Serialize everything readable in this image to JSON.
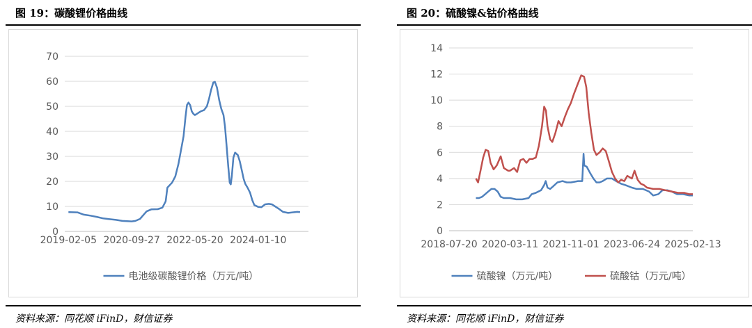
{
  "left": {
    "figure_title": "图 19：碳酸锂价格曲线",
    "source": "资料来源：同花顺 iFinD，财信证券"
  },
  "right": {
    "figure_title": "图 20：硫酸镍&钴价格曲线",
    "source": "资料来源：同花顺 iFinD，财信证券"
  },
  "colors": {
    "blue": "#4f81bd",
    "red": "#c0504d",
    "grid": "#d9d9d9"
  },
  "chart_data": [
    {
      "type": "line",
      "title": "",
      "xlabel": "",
      "ylabel": "",
      "ylim": [
        0,
        70
      ],
      "yticks": [
        0,
        10,
        20,
        30,
        40,
        50,
        60,
        70
      ],
      "xlim": [
        "2019-01-01",
        "2025-05-01"
      ],
      "xticks": [
        "2019-02-05",
        "2020-09-27",
        "2022-05-20",
        "2024-01-10"
      ],
      "grid": "horizontal",
      "legend": "bottom",
      "series": [
        {
          "name": "电池级碳酸锂价格（万元/吨）",
          "color": "#4f81bd",
          "points": [
            [
              "2019-02-05",
              7.7
            ],
            [
              "2019-05-01",
              7.6
            ],
            [
              "2019-07-01",
              6.7
            ],
            [
              "2019-09-01",
              6.3
            ],
            [
              "2019-11-01",
              5.8
            ],
            [
              "2020-01-01",
              5.2
            ],
            [
              "2020-03-01",
              4.9
            ],
            [
              "2020-05-01",
              4.6
            ],
            [
              "2020-07-01",
              4.2
            ],
            [
              "2020-09-27",
              4.0
            ],
            [
              "2020-11-01",
              4.2
            ],
            [
              "2020-12-15",
              5.0
            ],
            [
              "2021-01-15",
              6.5
            ],
            [
              "2021-02-15",
              8.0
            ],
            [
              "2021-04-01",
              8.8
            ],
            [
              "2021-06-01",
              8.9
            ],
            [
              "2021-07-15",
              9.5
            ],
            [
              "2021-08-15",
              12.0
            ],
            [
              "2021-09-01",
              17.5
            ],
            [
              "2021-10-15",
              19.5
            ],
            [
              "2021-11-15",
              22.0
            ],
            [
              "2021-12-15",
              27.0
            ],
            [
              "2022-01-10",
              33.0
            ],
            [
              "2022-02-01",
              38.0
            ],
            [
              "2022-02-20",
              46.0
            ],
            [
              "2022-03-05",
              50.5
            ],
            [
              "2022-03-20",
              51.5
            ],
            [
              "2022-04-05",
              50.5
            ],
            [
              "2022-04-20",
              48.0
            ],
            [
              "2022-05-05",
              47.0
            ],
            [
              "2022-05-20",
              46.5
            ],
            [
              "2022-06-15",
              47.2
            ],
            [
              "2022-07-15",
              48.0
            ],
            [
              "2022-08-15",
              48.5
            ],
            [
              "2022-09-10",
              50.0
            ],
            [
              "2022-10-01",
              53.0
            ],
            [
              "2022-10-20",
              56.5
            ],
            [
              "2022-11-10",
              59.5
            ],
            [
              "2022-11-25",
              59.8
            ],
            [
              "2022-12-15",
              57.5
            ],
            [
              "2023-01-05",
              52.5
            ],
            [
              "2023-01-25",
              49.0
            ],
            [
              "2023-02-15",
              46.5
            ],
            [
              "2023-03-01",
              42.0
            ],
            [
              "2023-03-15",
              35.0
            ],
            [
              "2023-04-01",
              26.0
            ],
            [
              "2023-04-15",
              19.5
            ],
            [
              "2023-04-25",
              18.8
            ],
            [
              "2023-05-05",
              22.0
            ],
            [
              "2023-05-20",
              29.5
            ],
            [
              "2023-06-05",
              31.5
            ],
            [
              "2023-07-01",
              30.5
            ],
            [
              "2023-07-20",
              28.0
            ],
            [
              "2023-08-10",
              24.0
            ],
            [
              "2023-08-25",
              21.0
            ],
            [
              "2023-09-10",
              19.0
            ],
            [
              "2023-10-01",
              17.5
            ],
            [
              "2023-10-25",
              15.5
            ],
            [
              "2023-11-15",
              12.5
            ],
            [
              "2023-12-05",
              10.5
            ],
            [
              "2024-01-10",
              9.8
            ],
            [
              "2024-02-10",
              9.7
            ],
            [
              "2024-03-15",
              10.8
            ],
            [
              "2024-04-20",
              11.0
            ],
            [
              "2024-05-20",
              10.8
            ],
            [
              "2024-06-25",
              9.8
            ],
            [
              "2024-07-25",
              9.0
            ],
            [
              "2024-09-01",
              7.8
            ],
            [
              "2024-10-20",
              7.4
            ],
            [
              "2024-12-01",
              7.6
            ],
            [
              "2025-01-15",
              7.8
            ],
            [
              "2025-02-10",
              7.7
            ]
          ]
        }
      ]
    },
    {
      "type": "line",
      "title": "",
      "xlabel": "",
      "ylabel": "",
      "ylim": [
        0,
        14
      ],
      "yticks": [
        0,
        2,
        4,
        6,
        8,
        10,
        12,
        14
      ],
      "xlim": [
        "2018-07-20",
        "2025-02-13"
      ],
      "xticks": [
        "2018-07-20",
        "2020-03-11",
        "2021-11-01",
        "2023-06-24",
        "2025-02-13"
      ],
      "grid": "horizontal",
      "legend": "bottom",
      "series": [
        {
          "name": "硫酸镍（万元/吨）",
          "color": "#4f81bd",
          "points": [
            [
              "2019-04-10",
              2.5
            ],
            [
              "2019-05-10",
              2.5
            ],
            [
              "2019-06-10",
              2.6
            ],
            [
              "2019-07-10",
              2.8
            ],
            [
              "2019-08-10",
              3.0
            ],
            [
              "2019-09-10",
              3.2
            ],
            [
              "2019-10-10",
              3.2
            ],
            [
              "2019-11-10",
              3.0
            ],
            [
              "2019-12-10",
              2.6
            ],
            [
              "2020-01-10",
              2.5
            ],
            [
              "2020-03-11",
              2.5
            ],
            [
              "2020-05-10",
              2.4
            ],
            [
              "2020-07-10",
              2.4
            ],
            [
              "2020-09-10",
              2.5
            ],
            [
              "2020-10-10",
              2.8
            ],
            [
              "2020-11-20",
              2.9
            ],
            [
              "2021-01-10",
              3.1
            ],
            [
              "2021-02-10",
              3.5
            ],
            [
              "2021-02-25",
              3.8
            ],
            [
              "2021-03-15",
              3.3
            ],
            [
              "2021-04-10",
              3.2
            ],
            [
              "2021-05-10",
              3.4
            ],
            [
              "2021-06-20",
              3.7
            ],
            [
              "2021-08-10",
              3.8
            ],
            [
              "2021-09-20",
              3.7
            ],
            [
              "2021-11-01",
              3.7
            ],
            [
              "2022-01-10",
              3.8
            ],
            [
              "2022-02-20",
              3.8
            ],
            [
              "2022-03-05",
              5.9
            ],
            [
              "2022-03-12",
              5.0
            ],
            [
              "2022-04-05",
              4.9
            ],
            [
              "2022-05-10",
              4.4
            ],
            [
              "2022-06-10",
              4.0
            ],
            [
              "2022-07-10",
              3.7
            ],
            [
              "2022-08-10",
              3.7
            ],
            [
              "2022-09-10",
              3.8
            ],
            [
              "2022-10-20",
              4.0
            ],
            [
              "2022-12-10",
              4.0
            ],
            [
              "2023-01-20",
              3.8
            ],
            [
              "2023-03-10",
              3.6
            ],
            [
              "2023-04-20",
              3.5
            ],
            [
              "2023-06-24",
              3.3
            ],
            [
              "2023-08-10",
              3.2
            ],
            [
              "2023-10-10",
              3.2
            ],
            [
              "2023-12-10",
              3.0
            ],
            [
              "2024-01-20",
              2.7
            ],
            [
              "2024-03-10",
              2.8
            ],
            [
              "2024-04-20",
              3.1
            ],
            [
              "2024-06-10",
              3.1
            ],
            [
              "2024-07-20",
              3.0
            ],
            [
              "2024-09-10",
              2.8
            ],
            [
              "2024-11-10",
              2.8
            ],
            [
              "2025-01-10",
              2.7
            ],
            [
              "2025-02-13",
              2.7
            ]
          ]
        },
        {
          "name": "硫酸钴（万元/吨）",
          "color": "#c0504d",
          "points": [
            [
              "2019-04-10",
              4.0
            ],
            [
              "2019-05-01",
              3.7
            ],
            [
              "2019-05-25",
              4.6
            ],
            [
              "2019-06-20",
              5.6
            ],
            [
              "2019-07-15",
              6.2
            ],
            [
              "2019-08-10",
              6.1
            ],
            [
              "2019-09-01",
              5.2
            ],
            [
              "2019-10-01",
              4.7
            ],
            [
              "2019-11-01",
              5.0
            ],
            [
              "2019-12-10",
              5.7
            ],
            [
              "2020-01-10",
              4.8
            ],
            [
              "2020-02-20",
              4.6
            ],
            [
              "2020-03-11",
              4.6
            ],
            [
              "2020-04-20",
              4.8
            ],
            [
              "2020-05-20",
              4.5
            ],
            [
              "2020-06-20",
              5.4
            ],
            [
              "2020-07-20",
              5.5
            ],
            [
              "2020-08-20",
              5.2
            ],
            [
              "2020-09-20",
              5.5
            ],
            [
              "2020-10-20",
              5.5
            ],
            [
              "2020-11-20",
              5.6
            ],
            [
              "2020-12-20",
              6.5
            ],
            [
              "2021-01-20",
              8.0
            ],
            [
              "2021-02-10",
              9.5
            ],
            [
              "2021-02-28",
              9.2
            ],
            [
              "2021-03-15",
              8.0
            ],
            [
              "2021-04-10",
              7.0
            ],
            [
              "2021-05-01",
              6.8
            ],
            [
              "2021-06-01",
              7.5
            ],
            [
              "2021-07-01",
              8.4
            ],
            [
              "2021-08-01",
              8.0
            ],
            [
              "2021-09-01",
              8.7
            ],
            [
              "2021-10-01",
              9.3
            ],
            [
              "2021-11-01",
              9.8
            ],
            [
              "2021-12-01",
              10.5
            ],
            [
              "2022-01-10",
              11.3
            ],
            [
              "2022-02-10",
              11.9
            ],
            [
              "2022-03-10",
              11.8
            ],
            [
              "2022-04-01",
              11.0
            ],
            [
              "2022-04-25",
              9.0
            ],
            [
              "2022-05-20",
              7.5
            ],
            [
              "2022-06-15",
              6.2
            ],
            [
              "2022-07-10",
              5.8
            ],
            [
              "2022-08-10",
              6.0
            ],
            [
              "2022-09-10",
              6.3
            ],
            [
              "2022-10-10",
              6.1
            ],
            [
              "2022-11-10",
              5.3
            ],
            [
              "2022-12-10",
              4.5
            ],
            [
              "2023-01-10",
              4.0
            ],
            [
              "2023-02-10",
              3.7
            ],
            [
              "2023-03-10",
              3.9
            ],
            [
              "2023-04-10",
              3.8
            ],
            [
              "2023-05-10",
              4.2
            ],
            [
              "2023-06-24",
              4.0
            ],
            [
              "2023-07-20",
              4.6
            ],
            [
              "2023-08-20",
              3.9
            ],
            [
              "2023-09-20",
              3.6
            ],
            [
              "2023-10-20",
              3.5
            ],
            [
              "2023-11-20",
              3.3
            ],
            [
              "2024-01-20",
              3.2
            ],
            [
              "2024-03-20",
              3.2
            ],
            [
              "2024-05-20",
              3.1
            ],
            [
              "2024-07-20",
              3.0
            ],
            [
              "2024-09-20",
              2.9
            ],
            [
              "2024-11-20",
              2.9
            ],
            [
              "2025-01-10",
              2.8
            ],
            [
              "2025-02-13",
              2.8
            ]
          ]
        }
      ]
    }
  ]
}
